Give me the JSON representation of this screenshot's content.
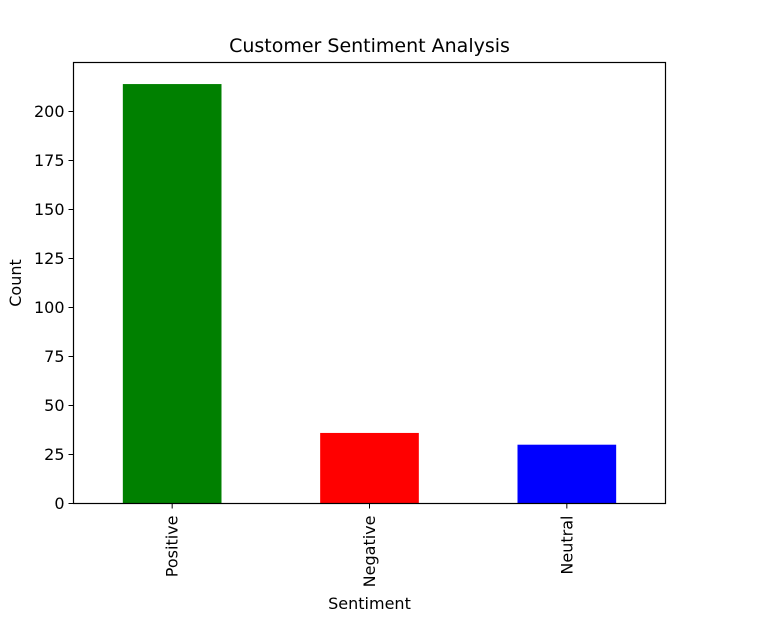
{
  "chart_data": {
    "type": "bar",
    "title": "Customer Sentiment Analysis",
    "xlabel": "Sentiment",
    "ylabel": "Count",
    "categories": [
      "Positive",
      "Negative",
      "Neutral"
    ],
    "values": [
      214,
      36,
      30
    ],
    "colors": [
      "#008000",
      "#ff0000",
      "#0000ff"
    ],
    "ylim": [
      0,
      225
    ],
    "yticks": [
      0,
      25,
      50,
      75,
      100,
      125,
      150,
      175,
      200
    ],
    "x_tick_rotation": "vertical",
    "grid": false,
    "legend": "none"
  }
}
